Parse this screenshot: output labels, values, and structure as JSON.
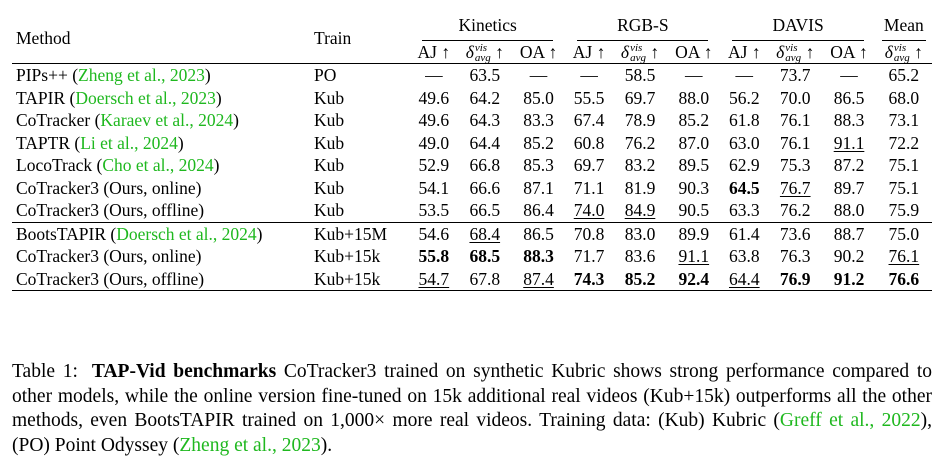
{
  "table": {
    "header": {
      "method": "Method",
      "train": "Train",
      "groups": [
        "Kinetics",
        "RGB-S",
        "DAVIS",
        "Mean"
      ],
      "metric_aj": "AJ",
      "metric_oa": "OA",
      "metric_delta": "δ",
      "delta_sup": "vis",
      "delta_sub": "avg",
      "arrow": "↑"
    },
    "groups": [
      {
        "rows": [
          {
            "method": "PIPs++",
            "cite": "Zheng et al., 2023",
            "train": "PO",
            "cells": [
              "—",
              "63.5",
              "—",
              "—",
              "58.5",
              "—",
              "—",
              "73.7",
              "—",
              "65.2"
            ],
            "fmt": [
              "",
              "",
              "",
              "",
              "",
              "",
              "",
              "",
              "",
              ""
            ]
          },
          {
            "method": "TAPIR",
            "cite": "Doersch et al., 2023",
            "train": "Kub",
            "cells": [
              "49.6",
              "64.2",
              "85.0",
              "55.5",
              "69.7",
              "88.0",
              "56.2",
              "70.0",
              "86.5",
              "68.0"
            ],
            "fmt": [
              "",
              "",
              "",
              "",
              "",
              "",
              "",
              "",
              "",
              ""
            ]
          },
          {
            "method": "CoTracker",
            "cite": "Karaev et al., 2024",
            "train": "Kub",
            "cells": [
              "49.6",
              "64.3",
              "83.3",
              "67.4",
              "78.9",
              "85.2",
              "61.8",
              "76.1",
              "88.3",
              "73.1"
            ],
            "fmt": [
              "",
              "",
              "",
              "",
              "",
              "",
              "",
              "",
              "",
              ""
            ]
          },
          {
            "method": "TAPTR",
            "cite": "Li et al., 2024",
            "train": "Kub",
            "cells": [
              "49.0",
              "64.4",
              "85.2",
              "60.8",
              "76.2",
              "87.0",
              "63.0",
              "76.1",
              "91.1",
              "72.2"
            ],
            "fmt": [
              "",
              "",
              "",
              "",
              "",
              "",
              "",
              "",
              "u",
              ""
            ]
          },
          {
            "method": "LocoTrack",
            "cite": "Cho et al., 2024",
            "train": "Kub",
            "cells": [
              "52.9",
              "66.8",
              "85.3",
              "69.7",
              "83.2",
              "89.5",
              "62.9",
              "75.3",
              "87.2",
              "75.1"
            ],
            "fmt": [
              "",
              "",
              "",
              "",
              "",
              "",
              "",
              "",
              "",
              ""
            ]
          },
          {
            "method": "CoTracker3 (Ours, online)",
            "cite": "",
            "train": "Kub",
            "cells": [
              "54.1",
              "66.6",
              "87.1",
              "71.1",
              "81.9",
              "90.3",
              "64.5",
              "76.7",
              "89.7",
              "75.1"
            ],
            "fmt": [
              "",
              "",
              "",
              "",
              "",
              "",
              "b",
              "u",
              "",
              ""
            ]
          },
          {
            "method": "CoTracker3 (Ours, offline)",
            "cite": "",
            "train": "Kub",
            "cells": [
              "53.5",
              "66.5",
              "86.4",
              "74.0",
              "84.9",
              "90.5",
              "63.3",
              "76.2",
              "88.0",
              "75.9"
            ],
            "fmt": [
              "",
              "",
              "",
              "u",
              "u",
              "",
              "",
              "",
              "",
              ""
            ]
          }
        ]
      },
      {
        "rows": [
          {
            "method": "BootsTAPIR",
            "cite": "Doersch et al., 2024",
            "train": "Kub+15M",
            "cells": [
              "54.6",
              "68.4",
              "86.5",
              "70.8",
              "83.0",
              "89.9",
              "61.4",
              "73.6",
              "88.7",
              "75.0"
            ],
            "fmt": [
              "",
              "u",
              "",
              "",
              "",
              "",
              "",
              "",
              "",
              ""
            ]
          },
          {
            "method": "CoTracker3 (Ours, online)",
            "cite": "",
            "train": "Kub+15k",
            "cells": [
              "55.8",
              "68.5",
              "88.3",
              "71.7",
              "83.6",
              "91.1",
              "63.8",
              "76.3",
              "90.2",
              "76.1"
            ],
            "fmt": [
              "b",
              "b",
              "b",
              "",
              "",
              "u",
              "",
              "",
              "",
              "u"
            ]
          },
          {
            "method": "CoTracker3 (Ours, offline)",
            "cite": "",
            "train": "Kub+15k",
            "cells": [
              "54.7",
              "67.8",
              "87.4",
              "74.3",
              "85.2",
              "92.4",
              "64.4",
              "76.9",
              "91.2",
              "76.6"
            ],
            "fmt": [
              "u",
              "",
              "u",
              "b",
              "b",
              "b",
              "u",
              "b",
              "b",
              "b"
            ]
          }
        ]
      }
    ]
  },
  "caption": {
    "label": "Table 1:",
    "title": "TAP-Vid benchmarks",
    "text_1": " CoTracker3 trained on synthetic Kubric shows strong performance compared to other models, while the online version fine-tuned on 15k additional real videos (Kub+15k) outperforms all the other methods, even BootsTAPIR trained on 1,000× more real videos. Training data: (Kub) Kubric (",
    "cite_1": "Greff et al., 2022",
    "text_2": "), (PO) Point Odyssey (",
    "cite_2": "Zheng et al., 2023",
    "text_3": ")."
  },
  "colors": {
    "citation": "#1fb81f",
    "text": "#000000"
  }
}
